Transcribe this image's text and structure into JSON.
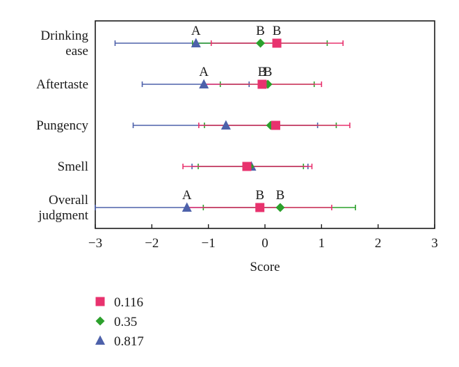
{
  "chart_data": {
    "type": "scatter",
    "subtype": "horizontal-interval-plot",
    "xlabel": "Score",
    "xlim": [
      -3,
      3
    ],
    "xticks": [
      -3,
      -2,
      -1,
      0,
      1,
      2,
      3
    ],
    "xtick_labels": [
      "−3",
      "−2",
      "−1",
      "0",
      "1",
      "2",
      "3"
    ],
    "grid": false,
    "legend_position": "bottom-left",
    "categories": [
      {
        "label_lines": [
          "Drinking",
          "ease"
        ]
      },
      {
        "label_lines": [
          "Aftertaste"
        ]
      },
      {
        "label_lines": [
          "Pungency"
        ]
      },
      {
        "label_lines": [
          "Smell"
        ]
      },
      {
        "label_lines": [
          "Overall",
          "judgment"
        ]
      }
    ],
    "series": [
      {
        "name": "0.116",
        "color": "#e8326e",
        "marker": "square",
        "values": [
          0.21,
          -0.05,
          0.19,
          -0.32,
          -0.09
        ],
        "lower": [
          -0.95,
          -1.08,
          -1.17,
          -1.45,
          -1.38
        ],
        "upper": [
          1.38,
          1.0,
          1.5,
          0.83,
          1.18
        ],
        "letters": [
          "B",
          "B",
          "",
          "",
          "B"
        ]
      },
      {
        "name": "0.35",
        "color": "#2ca02c",
        "marker": "diamond",
        "values": [
          -0.08,
          0.05,
          0.1,
          -0.27,
          0.27
        ],
        "lower": [
          -1.28,
          -0.79,
          -1.07,
          -1.18,
          -1.09
        ],
        "upper": [
          1.1,
          0.87,
          1.26,
          0.68,
          1.6
        ],
        "letters": [
          "B",
          "B",
          "",
          "",
          "B"
        ]
      },
      {
        "name": "0.817",
        "color": "#4d61aa",
        "marker": "triangle",
        "values": [
          -1.22,
          -1.08,
          -0.69,
          -0.24,
          -1.38
        ],
        "lower": [
          -2.65,
          -2.17,
          -2.33,
          -1.29,
          -3.0
        ],
        "upper": [
          -0.1,
          -0.28,
          0.93,
          0.76,
          0.25
        ],
        "letters": [
          "A",
          "A",
          "",
          "",
          "A"
        ]
      }
    ]
  }
}
